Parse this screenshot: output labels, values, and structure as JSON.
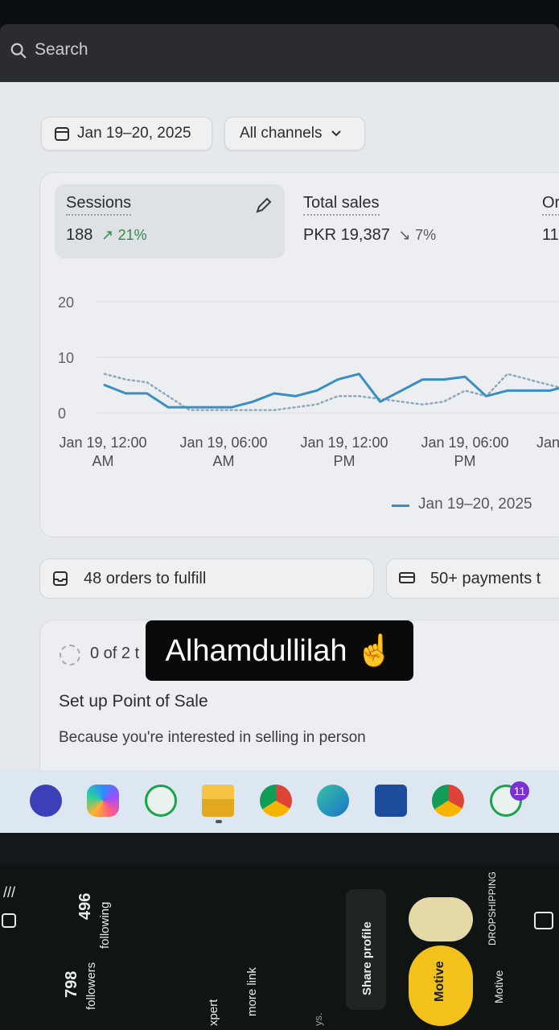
{
  "search": {
    "placeholder": "Search"
  },
  "filters": {
    "date_range": "Jan 19–20, 2025",
    "channel": "All channels"
  },
  "metrics": [
    {
      "title": "Sessions",
      "value": "188",
      "change": "21%",
      "direction": "up"
    },
    {
      "title": "Total sales",
      "value": "PKR 19,387",
      "change": "7%",
      "direction": "down"
    },
    {
      "title": "Or",
      "value": "11"
    }
  ],
  "chart_data": {
    "type": "line",
    "x_ticks": [
      "Jan 19, 12:00 AM",
      "Jan 19, 06:00 AM",
      "Jan 19, 12:00 PM",
      "Jan 19, 06:00 PM",
      "Jan"
    ],
    "x_tick_lines": [
      [
        "Jan 19, 12:00",
        "AM"
      ],
      [
        "Jan 19, 06:00",
        "AM"
      ],
      [
        "Jan 19, 12:00",
        "PM"
      ],
      [
        "Jan 19, 06:00",
        "PM"
      ],
      [
        "Jan",
        ""
      ]
    ],
    "y_ticks": [
      "20",
      "10",
      "0"
    ],
    "ylim": [
      0,
      20
    ],
    "series": [
      {
        "name": "Jan 19–20, 2025",
        "color": "#3a8fc2",
        "style": "solid",
        "values": [
          5,
          3.5,
          3.5,
          1,
          1,
          1,
          1,
          2,
          3.5,
          3,
          4,
          6,
          7,
          2,
          4,
          6,
          6,
          6.5,
          3,
          4,
          4,
          4,
          5
        ]
      },
      {
        "name": "",
        "color": "#8fa9bb",
        "style": "dotted",
        "values": [
          7,
          6,
          5.5,
          3,
          0.5,
          0.5,
          0.5,
          0.5,
          0.5,
          1,
          1.5,
          3,
          3,
          2.5,
          2,
          1.5,
          2,
          4,
          3,
          7,
          6,
          5,
          4
        ]
      }
    ]
  },
  "legend": {
    "label": "Jan 19–20, 2025"
  },
  "tasks": {
    "orders": "48 orders to fulfill",
    "payments": "50+ payments t"
  },
  "setup": {
    "progress": "0 of 2 t",
    "title": "Set up Point of Sale",
    "description": "Because you're interested in selling in person"
  },
  "caption": "Alhamdullilah ☝️",
  "taskbar": {
    "whatsapp_badge": "11"
  },
  "phone": {
    "followers_count": "798",
    "followers_label": "followers",
    "following_count": "496",
    "following_label": "following",
    "share_profile": "Share profile",
    "more_link": "more link",
    "expert_text": "xpert",
    "ys_text": "ys.",
    "brand_name": "Motive",
    "brand_tag": "DROPSHIPPING",
    "highlight_label": "Motive"
  }
}
